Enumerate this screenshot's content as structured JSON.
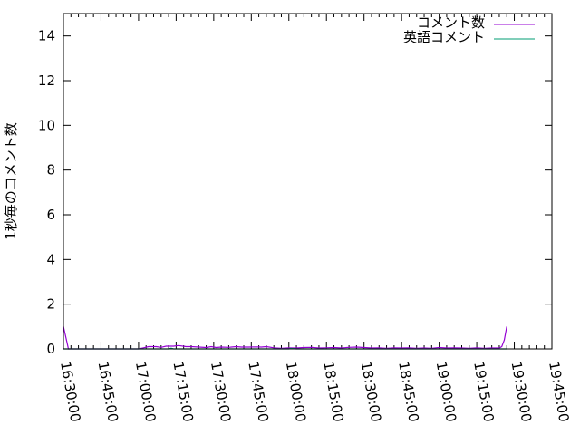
{
  "chart_data": {
    "type": "line",
    "title": "",
    "xlabel": "",
    "ylabel": "1秒毎のコメント数",
    "xlim": [
      "16:30:00",
      "19:45:00"
    ],
    "ylim": [
      0,
      15
    ],
    "x_ticks": [
      "16:30:00",
      "16:45:00",
      "17:00:00",
      "17:15:00",
      "17:30:00",
      "17:45:00",
      "18:00:00",
      "18:15:00",
      "18:30:00",
      "18:45:00",
      "19:00:00",
      "19:15:00",
      "19:30:00",
      "19:45:00"
    ],
    "y_ticks": [
      "0",
      "2",
      "4",
      "6",
      "8",
      "10",
      "12",
      "14"
    ],
    "grid": false,
    "legend_position": "top-right",
    "series": [
      {
        "name": "コメント数",
        "color": "#9400d3",
        "points": [
          [
            "16:30",
            1
          ],
          [
            "16:31",
            0.5
          ],
          [
            "16:32",
            0
          ],
          [
            "17:00",
            0
          ],
          [
            "17:02",
            0.05
          ],
          [
            "17:04",
            0.1
          ],
          [
            "17:07",
            0.1
          ],
          [
            "17:09",
            0.07
          ],
          [
            "17:11",
            0.12
          ],
          [
            "17:14",
            0.12
          ],
          [
            "17:16",
            0.15
          ],
          [
            "17:19",
            0.1
          ],
          [
            "17:21",
            0.1
          ],
          [
            "17:24",
            0.08
          ],
          [
            "17:27",
            0.06
          ],
          [
            "17:29",
            0.1
          ],
          [
            "17:31",
            0.06
          ],
          [
            "17:33",
            0.08
          ],
          [
            "17:36",
            0.07
          ],
          [
            "17:39",
            0.1
          ],
          [
            "17:41",
            0.08
          ],
          [
            "17:44",
            0.08
          ],
          [
            "17:47",
            0.09
          ],
          [
            "17:49",
            0.08
          ],
          [
            "17:51",
            0.1
          ],
          [
            "17:54",
            0.05
          ],
          [
            "17:57",
            0.03
          ],
          [
            "18:00",
            0.05
          ],
          [
            "18:03",
            0.04
          ],
          [
            "18:06",
            0.06
          ],
          [
            "18:09",
            0.07
          ],
          [
            "18:12",
            0.04
          ],
          [
            "18:15",
            0.05
          ],
          [
            "18:18",
            0.06
          ],
          [
            "18:21",
            0.04
          ],
          [
            "18:24",
            0.07
          ],
          [
            "18:27",
            0.08
          ],
          [
            "18:30",
            0.06
          ],
          [
            "18:33",
            0.04
          ],
          [
            "18:36",
            0.05
          ],
          [
            "18:39",
            0.03
          ],
          [
            "18:42",
            0.05
          ],
          [
            "18:45",
            0.04
          ],
          [
            "18:48",
            0.05
          ],
          [
            "18:51",
            0.03
          ],
          [
            "18:54",
            0.04
          ],
          [
            "18:57",
            0.03
          ],
          [
            "19:00",
            0.06
          ],
          [
            "19:03",
            0.04
          ],
          [
            "19:06",
            0.05
          ],
          [
            "19:09",
            0.04
          ],
          [
            "19:12",
            0.03
          ],
          [
            "19:15",
            0.05
          ],
          [
            "19:18",
            0.03
          ],
          [
            "19:21",
            0.04
          ],
          [
            "19:24",
            0.04
          ],
          [
            "19:25",
            0.1
          ],
          [
            "19:26",
            0.4
          ],
          [
            "19:27",
            1
          ]
        ]
      },
      {
        "name": "英語コメント",
        "color": "#009e73",
        "points": [
          [
            "16:30",
            0
          ],
          [
            "17:12",
            0
          ],
          [
            "17:13",
            0.03
          ],
          [
            "17:14",
            0
          ],
          [
            "18:00",
            0
          ],
          [
            "18:01",
            0.02
          ],
          [
            "18:03",
            0
          ],
          [
            "19:27",
            0
          ]
        ]
      }
    ]
  }
}
